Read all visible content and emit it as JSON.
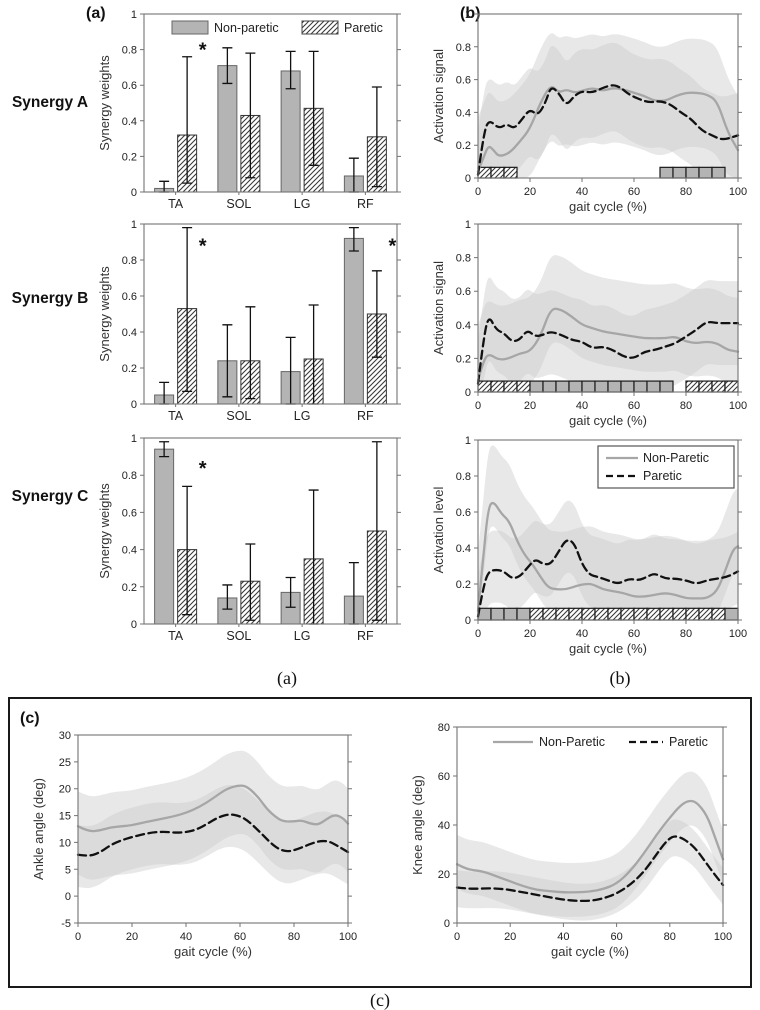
{
  "figure": {
    "panel_a_label": "(a)",
    "panel_b_label": "(b)",
    "panel_c_label": "(c)",
    "caption_a": "(a)",
    "caption_b": "(b)",
    "caption_c": "(c)",
    "significance_marker": "*"
  },
  "colors": {
    "bar_gray": "#b4b4b4",
    "line_gray": "#a6a6a6",
    "dashed_black": "#111111",
    "band_gray": "#c9c9c9",
    "hatch_line": "#3a3a3a",
    "axis": "#737373"
  },
  "chart_data": [
    {
      "id": "synergy-a",
      "type": "bar",
      "row_label": "Synergy A",
      "ylabel": "Synergy weights",
      "categories": [
        "TA",
        "SOL",
        "LG",
        "RF"
      ],
      "ylim": [
        0,
        1
      ],
      "yticks": [
        0,
        0.2,
        0.4,
        0.6,
        0.8,
        1
      ],
      "series": [
        {
          "name": "Non-paretic",
          "style": "gray",
          "values": [
            0.02,
            0.71,
            0.68,
            0.09
          ],
          "err_lo": [
            0,
            0.61,
            0.58,
            0
          ],
          "err_hi": [
            0.06,
            0.81,
            0.79,
            0.19
          ]
        },
        {
          "name": "Paretic",
          "style": "hatch",
          "values": [
            0.32,
            0.43,
            0.47,
            0.31
          ],
          "err_lo": [
            0.05,
            0.08,
            0.15,
            0.03
          ],
          "err_hi": [
            0.76,
            0.78,
            0.79,
            0.59
          ]
        }
      ],
      "asterisks": [
        {
          "cat": 0,
          "y": 0.8
        }
      ],
      "legend": {
        "kind": "swatch"
      }
    },
    {
      "id": "synergy-b",
      "type": "bar",
      "row_label": "Synergy B",
      "ylabel": "Synergy weights",
      "categories": [
        "TA",
        "SOL",
        "LG",
        "RF"
      ],
      "ylim": [
        0,
        1
      ],
      "yticks": [
        0,
        0.2,
        0.4,
        0.6,
        0.8,
        1
      ],
      "series": [
        {
          "name": "Non-paretic",
          "style": "gray",
          "values": [
            0.05,
            0.24,
            0.18,
            0.92
          ],
          "err_lo": [
            0,
            0.04,
            0,
            0.85
          ],
          "err_hi": [
            0.12,
            0.44,
            0.37,
            0.98
          ]
        },
        {
          "name": "Paretic",
          "style": "hatch",
          "values": [
            0.53,
            0.24,
            0.25,
            0.5
          ],
          "err_lo": [
            0.07,
            0.03,
            0,
            0.26
          ],
          "err_hi": [
            0.98,
            0.54,
            0.55,
            0.74
          ]
        }
      ],
      "asterisks": [
        {
          "cat": 0,
          "y": 0.88
        },
        {
          "cat": 3,
          "y": 0.88
        }
      ]
    },
    {
      "id": "synergy-c",
      "type": "bar",
      "row_label": "Synergy C",
      "ylabel": "Synergy weights",
      "categories": [
        "TA",
        "SOL",
        "LG",
        "RF"
      ],
      "ylim": [
        0,
        1
      ],
      "yticks": [
        0,
        0.2,
        0.4,
        0.6,
        0.8,
        1
      ],
      "series": [
        {
          "name": "Non-paretic",
          "style": "gray",
          "values": [
            0.94,
            0.14,
            0.17,
            0.15
          ],
          "err_lo": [
            0.9,
            0.08,
            0.09,
            0
          ],
          "err_hi": [
            0.98,
            0.21,
            0.25,
            0.33
          ]
        },
        {
          "name": "Paretic",
          "style": "hatch",
          "values": [
            0.4,
            0.23,
            0.35,
            0.5
          ],
          "err_lo": [
            0.05,
            0.02,
            0,
            0.02
          ],
          "err_hi": [
            0.74,
            0.43,
            0.72,
            0.98
          ]
        }
      ],
      "asterisks": [
        {
          "cat": 0,
          "y": 0.84
        }
      ]
    },
    {
      "id": "activation-b1",
      "type": "line",
      "ylabel": "Activation signal",
      "xlabel": "gait cycle (%)",
      "xlim": [
        0,
        100
      ],
      "ylim": [
        0,
        1
      ],
      "xticks": [
        0,
        20,
        40,
        60,
        80,
        100
      ],
      "yticks": [
        0,
        0.2,
        0.4,
        0.6,
        0.8,
        1
      ],
      "series": [
        {
          "name": "Non-Paretic",
          "style": "gray",
          "band_hi": 0.33,
          "band_lo": 0.33,
          "x": [
            0,
            2,
            4,
            6,
            8,
            12,
            16,
            20,
            24,
            28,
            31,
            34,
            37,
            40,
            44,
            48,
            52,
            56,
            60,
            64,
            68,
            72,
            76,
            80,
            84,
            88,
            92,
            96,
            100
          ],
          "y": [
            0.04,
            0.12,
            0.2,
            0.17,
            0.13,
            0.15,
            0.22,
            0.3,
            0.46,
            0.57,
            0.52,
            0.54,
            0.52,
            0.53,
            0.55,
            0.53,
            0.55,
            0.54,
            0.52,
            0.5,
            0.47,
            0.47,
            0.5,
            0.52,
            0.52,
            0.51,
            0.47,
            0.28,
            0.17
          ]
        },
        {
          "name": "Paretic",
          "style": "dash",
          "band_hi": 0.26,
          "band_lo": 0.28,
          "x": [
            0,
            2,
            4,
            8,
            11,
            14,
            17,
            20,
            23,
            26,
            28,
            31,
            34,
            37,
            40,
            44,
            48,
            52,
            55,
            58,
            62,
            66,
            70,
            74,
            78,
            82,
            86,
            90,
            94,
            100
          ],
          "y": [
            0.02,
            0.25,
            0.36,
            0.3,
            0.33,
            0.3,
            0.36,
            0.42,
            0.38,
            0.46,
            0.56,
            0.52,
            0.44,
            0.5,
            0.53,
            0.52,
            0.55,
            0.57,
            0.55,
            0.51,
            0.48,
            0.46,
            0.47,
            0.45,
            0.4,
            0.36,
            0.29,
            0.26,
            0.23,
            0.26
          ]
        }
      ],
      "strips": [
        {
          "style": "hatch",
          "from": 0,
          "to": 15
        },
        {
          "style": "gray",
          "from": 70,
          "to": 95
        }
      ]
    },
    {
      "id": "activation-b2",
      "type": "line",
      "ylabel": "Activation signal",
      "xlabel": "gait cycle (%)",
      "xlim": [
        0,
        100
      ],
      "ylim": [
        0,
        1
      ],
      "xticks": [
        0,
        20,
        40,
        60,
        80,
        100
      ],
      "yticks": [
        0,
        0.2,
        0.4,
        0.6,
        0.8,
        1
      ],
      "series": [
        {
          "name": "Non-Paretic",
          "style": "gray",
          "band_hi": 0.32,
          "band_lo": 0.2,
          "x": [
            0,
            2,
            4,
            8,
            12,
            16,
            20,
            24,
            28,
            32,
            36,
            40,
            44,
            48,
            52,
            56,
            60,
            64,
            68,
            72,
            76,
            80,
            84,
            88,
            92,
            96,
            100
          ],
          "y": [
            0.07,
            0.18,
            0.23,
            0.19,
            0.2,
            0.23,
            0.24,
            0.33,
            0.5,
            0.49,
            0.45,
            0.4,
            0.38,
            0.36,
            0.35,
            0.34,
            0.33,
            0.32,
            0.32,
            0.32,
            0.33,
            0.3,
            0.29,
            0.3,
            0.29,
            0.25,
            0.24
          ]
        },
        {
          "name": "Paretic",
          "style": "dash",
          "band_hi": 0.25,
          "band_lo": 0.25,
          "x": [
            0,
            2,
            4,
            7,
            10,
            13,
            16,
            19,
            22,
            25,
            28,
            32,
            36,
            40,
            44,
            48,
            52,
            56,
            60,
            64,
            68,
            72,
            76,
            80,
            84,
            88,
            92,
            96,
            100
          ],
          "y": [
            0.05,
            0.3,
            0.46,
            0.37,
            0.35,
            0.3,
            0.31,
            0.37,
            0.33,
            0.34,
            0.36,
            0.34,
            0.31,
            0.3,
            0.26,
            0.27,
            0.25,
            0.21,
            0.2,
            0.24,
            0.25,
            0.27,
            0.29,
            0.33,
            0.37,
            0.42,
            0.41,
            0.41,
            0.41
          ]
        }
      ],
      "strips": [
        {
          "style": "hatch",
          "from": 0,
          "to": 20
        },
        {
          "style": "gray",
          "from": 20,
          "to": 75
        },
        {
          "style": "hatch",
          "from": 80,
          "to": 100
        }
      ]
    },
    {
      "id": "activation-b3",
      "type": "line",
      "ylabel": "Activation level",
      "xlabel": "gait cycle (%)",
      "xlim": [
        0,
        100
      ],
      "ylim": [
        0,
        1
      ],
      "xticks": [
        0,
        20,
        40,
        60,
        80,
        100
      ],
      "yticks": [
        0,
        0.2,
        0.4,
        0.6,
        0.8,
        1
      ],
      "series": [
        {
          "name": "Non-Paretic",
          "style": "gray",
          "band_hi": 0.32,
          "band_lo": 0.13,
          "x": [
            0,
            2,
            4,
            6,
            9,
            12,
            15,
            18,
            21,
            24,
            27,
            30,
            34,
            38,
            41,
            44,
            48,
            52,
            56,
            60,
            64,
            68,
            72,
            76,
            80,
            84,
            88,
            92,
            95,
            98,
            100
          ],
          "y": [
            0.05,
            0.35,
            0.63,
            0.66,
            0.59,
            0.55,
            0.44,
            0.36,
            0.31,
            0.24,
            0.18,
            0.17,
            0.17,
            0.19,
            0.2,
            0.2,
            0.17,
            0.16,
            0.15,
            0.13,
            0.13,
            0.14,
            0.15,
            0.14,
            0.12,
            0.12,
            0.12,
            0.16,
            0.27,
            0.39,
            0.41
          ]
        },
        {
          "name": "Paretic",
          "style": "dash",
          "band_hi": 0.22,
          "band_lo": 0.18,
          "x": [
            0,
            2,
            4,
            7,
            10,
            13,
            16,
            19,
            22,
            25,
            28,
            31,
            34,
            37,
            40,
            43,
            46,
            50,
            54,
            58,
            62,
            65,
            68,
            72,
            76,
            80,
            84,
            88,
            92,
            96,
            100
          ],
          "y": [
            0.02,
            0.18,
            0.27,
            0.28,
            0.27,
            0.23,
            0.24,
            0.29,
            0.34,
            0.31,
            0.31,
            0.38,
            0.45,
            0.43,
            0.31,
            0.25,
            0.24,
            0.22,
            0.2,
            0.23,
            0.22,
            0.24,
            0.26,
            0.23,
            0.23,
            0.22,
            0.2,
            0.22,
            0.23,
            0.24,
            0.27
          ]
        }
      ],
      "strips": [
        {
          "style": "gray",
          "from": 0,
          "to": 20
        },
        {
          "style": "hatch",
          "from": 20,
          "to": 95
        },
        {
          "style": "gray",
          "from": 95,
          "to": 100
        }
      ],
      "legend": {
        "kind": "box"
      }
    },
    {
      "id": "ankle-angle",
      "type": "line",
      "ylabel": "Ankle angle (deg)",
      "xlabel": "gait cycle (%)",
      "xlim": [
        0,
        100
      ],
      "ylim": [
        -5,
        30
      ],
      "xticks": [
        0,
        20,
        40,
        60,
        80,
        100
      ],
      "yticks": [
        -5,
        0,
        5,
        10,
        15,
        20,
        25,
        30
      ],
      "series": [
        {
          "name": "Non-Paretic",
          "style": "gray",
          "band_hi": 6.5,
          "band_lo": 9,
          "x": [
            0,
            4,
            8,
            12,
            16,
            20,
            25,
            30,
            35,
            40,
            45,
            50,
            55,
            60,
            63,
            67,
            70,
            73,
            76,
            80,
            83,
            86,
            89,
            92,
            95,
            98,
            100
          ],
          "y": [
            13,
            12,
            12.2,
            12.8,
            13,
            13.2,
            13.8,
            14.3,
            14.8,
            15.5,
            16.6,
            18.2,
            20,
            20.7,
            20.3,
            18.3,
            16.2,
            14.8,
            13.9,
            13.9,
            14.1,
            13.5,
            13.3,
            14.3,
            15.2,
            14.6,
            13.5
          ]
        },
        {
          "name": "Paretic",
          "style": "dash",
          "band_hi": 5.5,
          "band_lo": 6,
          "x": [
            0,
            4,
            8,
            12,
            16,
            20,
            24,
            28,
            32,
            36,
            40,
            44,
            48,
            52,
            56,
            60,
            63,
            66,
            69,
            72,
            75,
            78,
            81,
            84,
            87,
            90,
            93,
            96,
            100
          ],
          "y": [
            7.7,
            7.4,
            8.1,
            9.5,
            10.4,
            11,
            11.5,
            11.9,
            12,
            11.8,
            11.9,
            12.4,
            13.5,
            14.7,
            15.3,
            14.9,
            14,
            12.6,
            11.1,
            9.6,
            8.6,
            8.3,
            8.7,
            9.3,
            9.9,
            10.3,
            10.2,
            9.4,
            8.2
          ]
        }
      ]
    },
    {
      "id": "knee-angle",
      "type": "line",
      "ylabel": "Knee angle (deg)",
      "xlabel": "gait cycle (%)",
      "xlim": [
        0,
        100
      ],
      "ylim": [
        0,
        80
      ],
      "xticks": [
        0,
        20,
        40,
        60,
        80,
        100
      ],
      "yticks": [
        0,
        20,
        40,
        60,
        80
      ],
      "series": [
        {
          "name": "Non-Paretic",
          "style": "gray",
          "band_hi": 12,
          "band_lo": 10,
          "x": [
            0,
            3,
            6,
            10,
            15,
            20,
            25,
            30,
            35,
            40,
            45,
            50,
            55,
            60,
            65,
            70,
            75,
            80,
            84,
            87,
            90,
            94,
            97,
            100
          ],
          "y": [
            24,
            22.3,
            21.6,
            21,
            19,
            17,
            15,
            13.5,
            13,
            12.5,
            12.5,
            12.8,
            13.8,
            16,
            21,
            28,
            36,
            43,
            48,
            50,
            49.5,
            44,
            35,
            26
          ]
        },
        {
          "name": "Paretic",
          "style": "dash",
          "band_hi": 7,
          "band_lo": 8,
          "x": [
            0,
            4,
            8,
            12,
            16,
            20,
            25,
            30,
            35,
            40,
            45,
            50,
            55,
            60,
            65,
            70,
            75,
            78,
            81,
            84,
            87,
            90,
            93,
            96,
            100
          ],
          "y": [
            14.5,
            14,
            14,
            14.2,
            14,
            13.5,
            12.5,
            11.5,
            10.5,
            9.5,
            9,
            9,
            10,
            12,
            15.5,
            20.5,
            28,
            32.5,
            35.5,
            35,
            33,
            30,
            25.5,
            21,
            15.5
          ]
        }
      ],
      "legend": {
        "kind": "inline"
      }
    }
  ]
}
